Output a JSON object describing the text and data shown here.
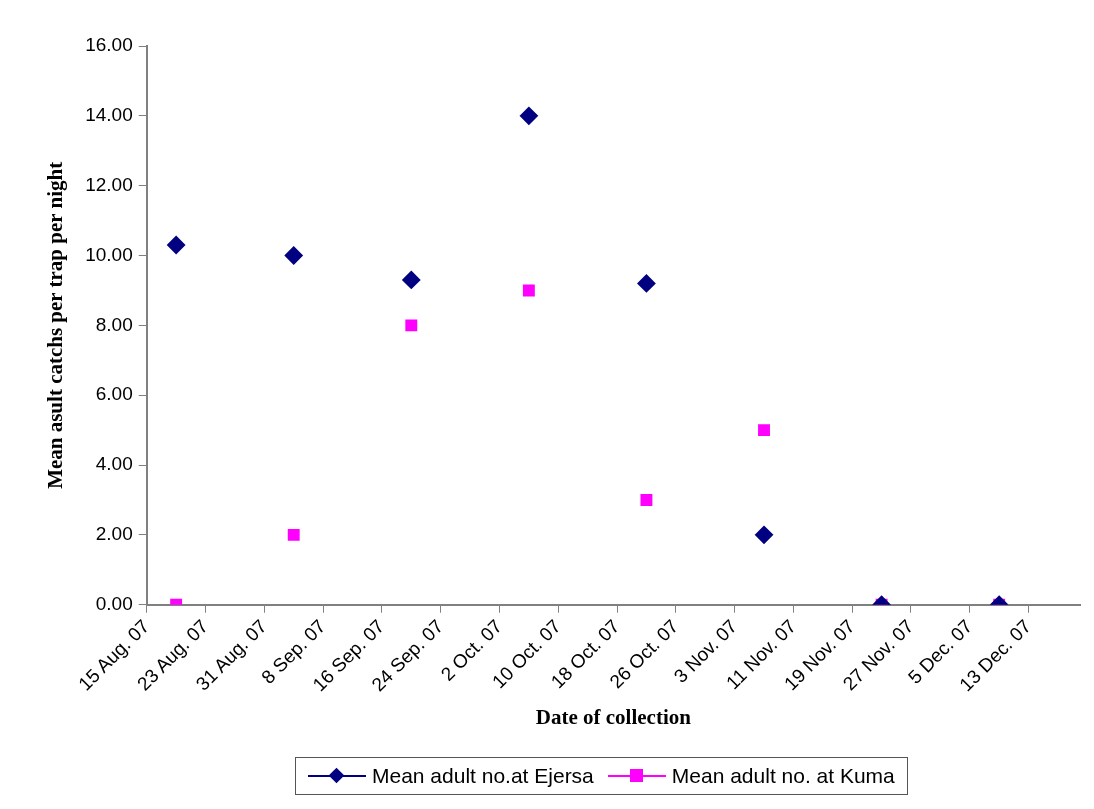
{
  "chart_data": {
    "type": "scatter",
    "xlabel": "Date of collection",
    "ylabel": "Mean asult catchs per trap per night",
    "x": [
      "--08-19",
      "--09-04",
      "--09-20",
      "--10-06",
      "--10-22",
      "--11-07",
      "--11-23",
      "--12-09"
    ],
    "series": [
      {
        "name": "Mean adult no.at Ejersa",
        "color": "#000080",
        "marker": "diamond",
        "values": [
          10.3,
          10.0,
          9.3,
          14.0,
          9.2,
          2.0,
          0,
          0
        ]
      },
      {
        "name": "Mean adult no. at Kuma",
        "color": "#ff00ff",
        "marker": "square",
        "values": [
          0,
          2.0,
          8.0,
          9.0,
          3.0,
          5.0,
          0,
          0
        ]
      }
    ],
    "xlim": [
      "--08-15",
      "--12-20"
    ],
    "xticks": [
      {
        "value": "--08-15",
        "label": "15 Aug. 07"
      },
      {
        "value": "--08-23",
        "label": "23 Aug. 07"
      },
      {
        "value": "--08-31",
        "label": "31 Aug. 07"
      },
      {
        "value": "--09-08",
        "label": "8 Sep. 07"
      },
      {
        "value": "--09-16",
        "label": "16 Sep. 07"
      },
      {
        "value": "--09-24",
        "label": "24 Sep. 07"
      },
      {
        "value": "--10-02",
        "label": "2 Oct. 07"
      },
      {
        "value": "--10-10",
        "label": "10 Oct. 07"
      },
      {
        "value": "--10-18",
        "label": "18 Oct. 07"
      },
      {
        "value": "--10-26",
        "label": "26 Oct. 07"
      },
      {
        "value": "--11-03",
        "label": "3 Nov. 07"
      },
      {
        "value": "--11-11",
        "label": "11 Nov. 07"
      },
      {
        "value": "--11-19",
        "label": "19 Nov. 07"
      },
      {
        "value": "--11-27",
        "label": "27 Nov. 07"
      },
      {
        "value": "--12-05",
        "label": "5 Dec. 07"
      },
      {
        "value": "--12-13",
        "label": "13 Dec. 07"
      }
    ],
    "ylim": [
      0,
      16
    ],
    "yticks": [
      {
        "value": 0,
        "label": "0.00"
      },
      {
        "value": 2,
        "label": "2.00"
      },
      {
        "value": 4,
        "label": "4.00"
      },
      {
        "value": 6,
        "label": "6.00"
      },
      {
        "value": 8,
        "label": "8.00"
      },
      {
        "value": 10,
        "label": "10.00"
      },
      {
        "value": 12,
        "label": "12.00"
      },
      {
        "value": 14,
        "label": "14.00"
      },
      {
        "value": 16,
        "label": "16.00"
      }
    ],
    "grid": false,
    "legend": "bottom"
  }
}
